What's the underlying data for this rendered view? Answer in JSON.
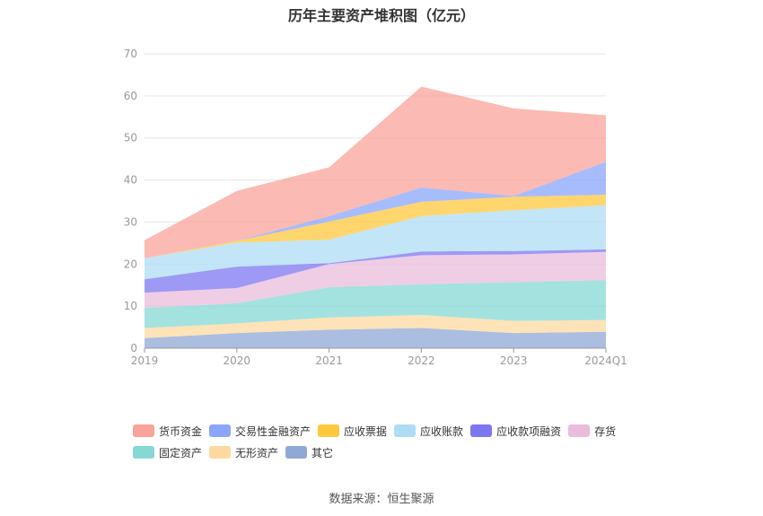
{
  "chart_data": {
    "type": "area",
    "stacked": true,
    "title": "历年主要资产堆积图（亿元）",
    "categories": [
      "2019",
      "2020",
      "2021",
      "2022",
      "2023",
      "2024Q1"
    ],
    "y_ticks": [
      "0",
      "10",
      "20",
      "30",
      "40",
      "50",
      "60",
      "70"
    ],
    "ylim": [
      0,
      70
    ],
    "grid": true,
    "legend_position": "bottom",
    "series": [
      {
        "name": "其它",
        "color": "#8fa8d6",
        "values": [
          2.4,
          3.6,
          4.4,
          4.8,
          3.6,
          3.9
        ]
      },
      {
        "name": "无形资产",
        "color": "#fdd9a2",
        "values": [
          2.4,
          2.3,
          2.9,
          3.1,
          2.9,
          2.8
        ]
      },
      {
        "name": "固定资产",
        "color": "#86d8d4",
        "values": [
          4.8,
          4.8,
          7.2,
          7.3,
          9.2,
          9.5
        ]
      },
      {
        "name": "存货",
        "color": "#e9bcdc",
        "values": [
          3.6,
          3.6,
          5.5,
          6.9,
          6.6,
          6.7
        ]
      },
      {
        "name": "应收款项融资",
        "color": "#7c77f0",
        "values": [
          3.2,
          5.1,
          0.2,
          0.9,
          0.8,
          0.6
        ]
      },
      {
        "name": "应收账款",
        "color": "#afdcf5",
        "values": [
          5.0,
          5.7,
          5.6,
          8.4,
          9.7,
          10.5
        ]
      },
      {
        "name": "应收票据",
        "color": "#ffc83d",
        "values": [
          0.0,
          0.4,
          4.3,
          3.4,
          3.2,
          2.5
        ]
      },
      {
        "name": "交易性金融资产",
        "color": "#8aa6fb",
        "values": [
          0.0,
          0.0,
          1.3,
          3.4,
          0.2,
          7.8
        ]
      },
      {
        "name": "货币资金",
        "color": "#f9a39a",
        "values": [
          4.3,
          11.9,
          11.6,
          24.0,
          20.8,
          11.1
        ]
      }
    ]
  },
  "source": "数据来源：恒生聚源"
}
